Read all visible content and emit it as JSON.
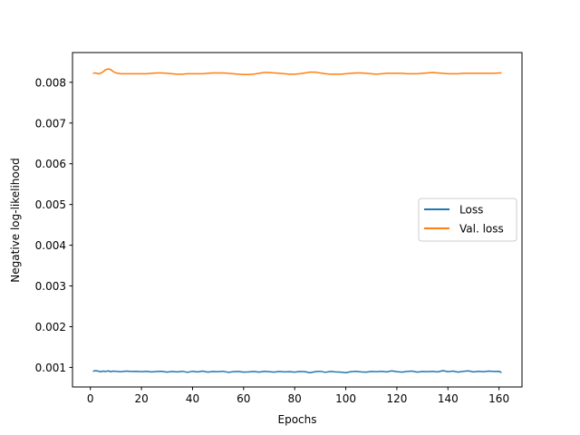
{
  "chart_data": {
    "type": "line",
    "xlabel": "Epochs",
    "ylabel": "Negative log-likelihood",
    "xlim": [
      -7,
      169
    ],
    "ylim": [
      0.00052,
      0.00873
    ],
    "xticks": [
      0,
      20,
      40,
      60,
      80,
      100,
      120,
      140,
      160
    ],
    "yticks": [
      0.001,
      0.002,
      0.003,
      0.004,
      0.005,
      0.006,
      0.007,
      0.008
    ],
    "ytick_labels": [
      "0.001",
      "0.002",
      "0.003",
      "0.004",
      "0.005",
      "0.006",
      "0.007",
      "0.008"
    ],
    "grid": false,
    "legend_position": "center-right",
    "series": [
      {
        "name": "Loss",
        "color": "#1f77b4",
        "x": [
          1,
          2,
          3,
          4,
          5,
          6,
          7,
          8,
          9,
          10,
          12,
          14,
          16,
          18,
          20,
          22,
          24,
          26,
          28,
          30,
          32,
          34,
          36,
          38,
          40,
          42,
          44,
          46,
          48,
          50,
          52,
          54,
          56,
          58,
          60,
          62,
          64,
          66,
          68,
          70,
          72,
          74,
          76,
          78,
          80,
          82,
          84,
          86,
          88,
          90,
          92,
          94,
          96,
          98,
          100,
          102,
          104,
          106,
          108,
          110,
          112,
          114,
          116,
          118,
          120,
          122,
          124,
          126,
          128,
          130,
          132,
          134,
          136,
          138,
          140,
          142,
          144,
          146,
          148,
          150,
          152,
          154,
          156,
          158,
          160,
          161
        ],
        "y": [
          0.000905,
          0.00092,
          0.00091,
          0.000895,
          0.00091,
          0.0009,
          0.000915,
          0.000895,
          0.00091,
          0.000905,
          0.000895,
          0.00091,
          0.0009,
          0.000905,
          0.000895,
          0.000905,
          0.00089,
          0.0009,
          0.000905,
          0.000885,
          0.0009,
          0.00089,
          0.000905,
          0.00088,
          0.000905,
          0.00089,
          0.00091,
          0.000885,
          0.0009,
          0.000895,
          0.000905,
          0.00088,
          0.000895,
          0.0009,
          0.000885,
          0.00089,
          0.0009,
          0.000885,
          0.000905,
          0.000895,
          0.000885,
          0.0009,
          0.00089,
          0.000895,
          0.000885,
          0.0009,
          0.000895,
          0.00087,
          0.000895,
          0.000905,
          0.00088,
          0.0009,
          0.00089,
          0.000885,
          0.00087,
          0.000895,
          0.000905,
          0.00089,
          0.000885,
          0.0009,
          0.000895,
          0.000905,
          0.00089,
          0.000915,
          0.000895,
          0.000885,
          0.0009,
          0.00091,
          0.000885,
          0.0009,
          0.000895,
          0.000905,
          0.00089,
          0.00092,
          0.000895,
          0.00091,
          0.000885,
          0.000905,
          0.000915,
          0.00089,
          0.000905,
          0.000895,
          0.00091,
          0.0009,
          0.000905,
          0.00087
        ]
      },
      {
        "name": "Val. loss",
        "color": "#ff7f0e",
        "x": [
          1,
          2,
          3,
          4,
          5,
          6,
          7,
          8,
          9,
          10,
          12,
          14,
          16,
          18,
          20,
          22,
          24,
          26,
          28,
          30,
          32,
          34,
          36,
          38,
          40,
          42,
          44,
          46,
          48,
          50,
          52,
          54,
          56,
          58,
          60,
          62,
          64,
          66,
          68,
          70,
          72,
          74,
          76,
          78,
          80,
          82,
          84,
          86,
          88,
          90,
          92,
          94,
          96,
          98,
          100,
          102,
          104,
          106,
          108,
          110,
          112,
          114,
          116,
          118,
          120,
          122,
          124,
          126,
          128,
          130,
          132,
          134,
          136,
          138,
          140,
          142,
          144,
          146,
          148,
          150,
          152,
          154,
          156,
          158,
          160,
          161
        ],
        "y": [
          0.00822,
          0.00823,
          0.00821,
          0.00822,
          0.00826,
          0.00831,
          0.00833,
          0.00831,
          0.00826,
          0.00823,
          0.00821,
          0.00821,
          0.00821,
          0.00821,
          0.00821,
          0.00821,
          0.00822,
          0.00823,
          0.00823,
          0.00822,
          0.00821,
          0.0082,
          0.0082,
          0.00821,
          0.00821,
          0.00821,
          0.00821,
          0.00822,
          0.00823,
          0.00823,
          0.00823,
          0.00822,
          0.00821,
          0.0082,
          0.00819,
          0.00819,
          0.0082,
          0.00822,
          0.00824,
          0.00824,
          0.00823,
          0.00822,
          0.00821,
          0.0082,
          0.0082,
          0.00821,
          0.00823,
          0.00825,
          0.00825,
          0.00823,
          0.00821,
          0.0082,
          0.0082,
          0.0082,
          0.00821,
          0.00822,
          0.00823,
          0.00823,
          0.00822,
          0.00821,
          0.0082,
          0.00821,
          0.00822,
          0.00822,
          0.00822,
          0.00822,
          0.00821,
          0.00821,
          0.00821,
          0.00822,
          0.00823,
          0.00824,
          0.00823,
          0.00822,
          0.00821,
          0.00821,
          0.00821,
          0.00822,
          0.00822,
          0.00822,
          0.00822,
          0.00822,
          0.00822,
          0.00822,
          0.00823,
          0.00823
        ]
      }
    ]
  }
}
